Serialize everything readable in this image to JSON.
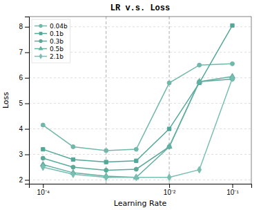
{
  "chart_data": {
    "type": "line",
    "title": "LR v.s. Loss",
    "xlabel": "Learning Rate",
    "ylabel": "Loss",
    "x": [
      0.0001,
      0.0003,
      0.001,
      0.003,
      0.01,
      0.03,
      0.1
    ],
    "series": [
      {
        "name": "0.04b",
        "color": "#72b8aa",
        "marker": "circle",
        "values": [
          4.15,
          3.3,
          3.15,
          3.2,
          5.8,
          6.5,
          6.55
        ]
      },
      {
        "name": "0.1b",
        "color": "#52a898",
        "marker": "square",
        "values": [
          3.2,
          2.8,
          2.7,
          2.75,
          4.0,
          5.8,
          8.05
        ]
      },
      {
        "name": "0.3b",
        "color": "#5aaa9a",
        "marker": "circle",
        "values": [
          2.85,
          2.5,
          2.38,
          2.42,
          3.3,
          5.85,
          5.95
        ]
      },
      {
        "name": "0.5b",
        "color": "#62b0a2",
        "marker": "triangle",
        "values": [
          2.6,
          2.28,
          2.15,
          2.1,
          3.3,
          5.85,
          6.05
        ]
      },
      {
        "name": "2.1b",
        "color": "#78bfb2",
        "marker": "diamond",
        "values": [
          2.5,
          2.22,
          2.1,
          2.1,
          2.1,
          2.4,
          5.98
        ]
      }
    ],
    "log": "x",
    "xlim": [
      6e-05,
      0.2
    ],
    "xticks": [
      {
        "value": 0.0001,
        "label": "10⁻⁴"
      },
      {
        "value": 0.01,
        "label": "10⁻²"
      },
      {
        "value": 0.1,
        "label": "10⁻¹"
      }
    ],
    "ylim": [
      1.85,
      8.4
    ],
    "yticks": [
      2,
      3,
      4,
      5,
      6,
      7,
      8
    ],
    "vlines": [
      0.001,
      0.01
    ],
    "grid": "y",
    "legend": "upper left"
  }
}
